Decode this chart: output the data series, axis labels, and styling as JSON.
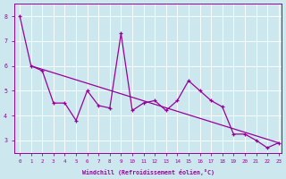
{
  "xlabel": "Windchill (Refroidissement éolien,°C)",
  "bg_color": "#cce8ee",
  "line_color": "#990099",
  "xlim": [
    -0.5,
    23.3
  ],
  "ylim": [
    2.5,
    8.5
  ],
  "xticks": [
    0,
    1,
    2,
    3,
    4,
    5,
    6,
    7,
    8,
    9,
    10,
    11,
    12,
    13,
    14,
    15,
    16,
    17,
    18,
    19,
    20,
    21,
    22,
    23
  ],
  "yticks": [
    3,
    4,
    5,
    6,
    7,
    8
  ],
  "data_x": [
    0,
    1,
    2,
    3,
    4,
    5,
    6,
    7,
    8,
    9,
    10,
    11,
    12,
    13,
    14,
    15,
    16,
    17,
    18,
    19,
    20,
    21,
    22,
    23
  ],
  "data_y": [
    8.0,
    6.0,
    5.8,
    4.5,
    4.5,
    3.8,
    5.0,
    4.4,
    4.3,
    7.3,
    4.2,
    4.5,
    4.6,
    4.2,
    4.6,
    5.4,
    5.0,
    4.6,
    4.35,
    3.25,
    3.25,
    3.0,
    2.7,
    2.9
  ],
  "trend_x": [
    1,
    23
  ],
  "trend_y": [
    6.0,
    2.9
  ]
}
